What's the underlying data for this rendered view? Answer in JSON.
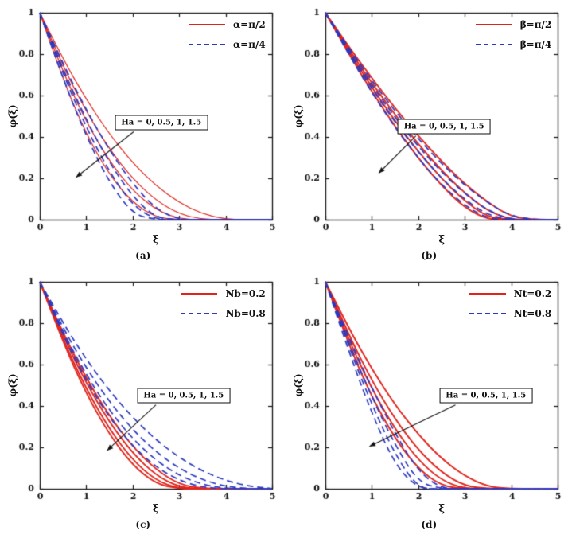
{
  "page": {
    "background": "#ffffff"
  },
  "chart_data": [
    {
      "id": "a",
      "type": "line",
      "title": "(a)",
      "xlabel": "ξ",
      "ylabel": "φ(ξ)",
      "xlim": [
        0,
        5
      ],
      "ylim": [
        0,
        1
      ],
      "grid": false,
      "legend_position": "top-right",
      "xticks": [
        "0",
        "1",
        "2",
        "3",
        "4",
        "5"
      ],
      "yticks": [
        "0",
        "0.2",
        "0.4",
        "0.6",
        "0.8",
        "1"
      ],
      "legend": [
        {
          "label": "α=π/2",
          "color": "#e0241c",
          "dash": "solid",
          "width": 1.2
        },
        {
          "label": "α=π/4",
          "color": "#2b38c0",
          "dash": "dashed",
          "width": 1.7
        }
      ],
      "annotation": {
        "text": "Ha = 0, 0.5, 1, 1.5",
        "x": 2.62,
        "y": 0.47,
        "arrow": {
          "x1": 2.02,
          "y1": 0.425,
          "x2": 0.78,
          "y2": 0.205
        }
      },
      "x": [
        0,
        0.5,
        1,
        1.5,
        2,
        2.5,
        3,
        3.5,
        4,
        4.5,
        5
      ],
      "series": [
        {
          "group": "α=π/2",
          "Ha": 0,
          "legend": 0,
          "values": [
            1,
            0.776,
            0.581,
            0.413,
            0.274,
            0.164,
            0.082,
            0.028,
            0.002,
            0,
            0
          ]
        },
        {
          "group": "α=π/2",
          "Ha": 0.5,
          "legend": 0,
          "values": [
            1,
            0.741,
            0.522,
            0.34,
            0.198,
            0.093,
            0.028,
            0.001,
            0,
            0,
            0
          ]
        },
        {
          "group": "α=π/2",
          "Ha": 1,
          "legend": 0,
          "values": [
            1,
            0.712,
            0.473,
            0.282,
            0.141,
            0.048,
            0.004,
            0,
            0,
            0,
            0
          ]
        },
        {
          "group": "α=π/2",
          "Ha": 1.5,
          "legend": 0,
          "values": [
            1,
            0.675,
            0.413,
            0.216,
            0.082,
            0.011,
            0,
            0,
            0,
            0,
            0
          ]
        },
        {
          "group": "α=π/4",
          "Ha": 0,
          "legend": 1,
          "values": [
            1,
            0.753,
            0.53,
            0.336,
            0.173,
            0.051,
            0,
            0,
            0,
            0,
            0
          ]
        },
        {
          "group": "α=π/4",
          "Ha": 0.5,
          "legend": 1,
          "values": [
            1,
            0.726,
            0.482,
            0.275,
            0.111,
            0.008,
            0,
            0,
            0,
            0,
            0
          ]
        },
        {
          "group": "α=π/4",
          "Ha": 1,
          "legend": 1,
          "values": [
            1,
            0.705,
            0.445,
            0.23,
            0.068,
            0,
            0,
            0,
            0,
            0,
            0
          ]
        },
        {
          "group": "α=π/4",
          "Ha": 1.5,
          "legend": 1,
          "values": [
            1,
            0.679,
            0.403,
            0.179,
            0.027,
            0,
            0,
            0,
            0,
            0,
            0
          ]
        }
      ]
    },
    {
      "id": "b",
      "type": "line",
      "title": "(b)",
      "xlabel": "ξ",
      "ylabel": "φ(ξ)",
      "xlim": [
        0,
        5
      ],
      "ylim": [
        0,
        1
      ],
      "grid": false,
      "legend_position": "top-right",
      "xticks": [
        "0",
        "1",
        "2",
        "3",
        "4",
        "5"
      ],
      "yticks": [
        "0",
        "0.2",
        "0.4",
        "0.6",
        "0.8",
        "1"
      ],
      "legend": [
        {
          "label": "β=π/2",
          "color": "#e0241c",
          "dash": "solid",
          "width": 1.9
        },
        {
          "label": "β=π/4",
          "color": "#2b38c0",
          "dash": "dashed",
          "width": 1.7
        }
      ],
      "annotation": {
        "text": "Ha = 0, 0.5, 1, 1.5",
        "x": 2.55,
        "y": 0.45,
        "arrow": {
          "x1": 1.95,
          "y1": 0.405,
          "x2": 1.15,
          "y2": 0.225
        }
      },
      "x": [
        0,
        0.5,
        1,
        1.5,
        2,
        2.5,
        3,
        3.5,
        4,
        4.5,
        5
      ],
      "series": [
        {
          "group": "β=π/2",
          "Ha": 0,
          "legend": 0,
          "values": [
            1,
            0.837,
            0.684,
            0.539,
            0.405,
            0.282,
            0.173,
            0.082,
            0.014,
            0,
            0
          ]
        },
        {
          "group": "β=π/2",
          "Ha": 0.5,
          "legend": 0,
          "values": [
            1,
            0.825,
            0.66,
            0.507,
            0.365,
            0.238,
            0.128,
            0.041,
            0,
            0,
            0
          ]
        },
        {
          "group": "β=π/2",
          "Ha": 1,
          "legend": 0,
          "values": [
            1,
            0.814,
            0.639,
            0.477,
            0.329,
            0.198,
            0.089,
            0.011,
            0,
            0,
            0
          ]
        },
        {
          "group": "β=π/2",
          "Ha": 1.5,
          "legend": 0,
          "values": [
            1,
            0.803,
            0.619,
            0.45,
            0.297,
            0.164,
            0.057,
            0,
            0,
            0,
            0
          ]
        },
        {
          "group": "β=π/4",
          "Ha": 0,
          "legend": 1,
          "values": [
            1,
            0.831,
            0.672,
            0.525,
            0.391,
            0.271,
            0.166,
            0.08,
            0.018,
            0,
            0
          ]
        },
        {
          "group": "β=π/4",
          "Ha": 0.5,
          "legend": 1,
          "values": [
            1,
            0.818,
            0.65,
            0.494,
            0.354,
            0.23,
            0.125,
            0.044,
            0,
            0,
            0
          ]
        },
        {
          "group": "β=π/4",
          "Ha": 1,
          "legend": 1,
          "values": [
            1,
            0.809,
            0.633,
            0.471,
            0.326,
            0.2,
            0.097,
            0.022,
            0,
            0,
            0
          ]
        },
        {
          "group": "β=π/4",
          "Ha": 1.5,
          "legend": 1,
          "values": [
            1,
            0.799,
            0.614,
            0.445,
            0.296,
            0.169,
            0.068,
            0.005,
            0,
            0,
            0
          ]
        }
      ]
    },
    {
      "id": "c",
      "type": "line",
      "title": "(c)",
      "xlabel": "ξ",
      "ylabel": "φ(ξ)",
      "xlim": [
        0,
        5
      ],
      "ylim": [
        0,
        1
      ],
      "grid": false,
      "legend_position": "top-right",
      "xticks": [
        "0",
        "1",
        "2",
        "3",
        "4",
        "5"
      ],
      "yticks": [
        "0",
        "0.2",
        "0.4",
        "0.6",
        "0.8",
        "1"
      ],
      "legend": [
        {
          "label": "Nb=0.2",
          "color": "#e0241c",
          "dash": "solid",
          "width": 1.9
        },
        {
          "label": "Nb=0.8",
          "color": "#2b38c0",
          "dash": "dashed",
          "width": 1.7
        }
      ],
      "annotation": {
        "text": "Ha = 0, 0.5, 1, 1.5",
        "x": 3.1,
        "y": 0.45,
        "arrow": {
          "x1": 2.5,
          "y1": 0.405,
          "x2": 1.45,
          "y2": 0.185
        }
      },
      "x": [
        0,
        0.5,
        1,
        1.5,
        2,
        2.5,
        3,
        3.5,
        4,
        4.5,
        5
      ],
      "series": [
        {
          "group": "Nb=0.2",
          "Ha": 0,
          "legend": 0,
          "values": [
            1,
            0.751,
            0.534,
            0.351,
            0.203,
            0.092,
            0.021,
            0,
            0,
            0,
            0
          ]
        },
        {
          "group": "Nb=0.2",
          "Ha": 0.5,
          "legend": 0,
          "values": [
            1,
            0.737,
            0.51,
            0.32,
            0.171,
            0.065,
            0.007,
            0,
            0,
            0,
            0
          ]
        },
        {
          "group": "Nb=0.2",
          "Ha": 1,
          "legend": 0,
          "values": [
            1,
            0.72,
            0.482,
            0.287,
            0.138,
            0.04,
            0,
            0,
            0,
            0,
            0
          ]
        },
        {
          "group": "Nb=0.2",
          "Ha": 1.5,
          "legend": 0,
          "values": [
            1,
            0.707,
            0.459,
            0.261,
            0.113,
            0.023,
            0,
            0,
            0,
            0,
            0
          ]
        },
        {
          "group": "Nb=0.8",
          "Ha": 0,
          "legend": 1,
          "values": [
            1,
            0.8,
            0.625,
            0.473,
            0.344,
            0.236,
            0.151,
            0.085,
            0.04,
            0.012,
            0.001
          ]
        },
        {
          "group": "Nb=0.8",
          "Ha": 0.5,
          "legend": 1,
          "values": [
            1,
            0.776,
            0.583,
            0.42,
            0.285,
            0.178,
            0.098,
            0.043,
            0.011,
            0,
            0
          ]
        },
        {
          "group": "Nb=0.8",
          "Ha": 1,
          "legend": 1,
          "values": [
            1,
            0.757,
            0.55,
            0.378,
            0.241,
            0.137,
            0.064,
            0.02,
            0.001,
            0,
            0
          ]
        },
        {
          "group": "Nb=0.8",
          "Ha": 1.5,
          "legend": 1,
          "values": [
            1,
            0.74,
            0.521,
            0.343,
            0.206,
            0.105,
            0.04,
            0.007,
            0,
            0,
            0
          ]
        }
      ]
    },
    {
      "id": "d",
      "type": "line",
      "title": "(d)",
      "xlabel": "ξ",
      "ylabel": "φ(ξ)",
      "xlim": [
        0,
        5
      ],
      "ylim": [
        0,
        1
      ],
      "grid": false,
      "legend_position": "top-right",
      "xticks": [
        "0",
        "1",
        "2",
        "3",
        "4",
        "5"
      ],
      "yticks": [
        "0",
        "0.2",
        "0.4",
        "0.6",
        "0.8",
        "1"
      ],
      "legend": [
        {
          "label": "Nt=0.2",
          "color": "#e0241c",
          "dash": "solid",
          "width": 1.9
        },
        {
          "label": "Nt=0.8",
          "color": "#2b38c0",
          "dash": "dashed",
          "width": 1.7
        }
      ],
      "annotation": {
        "text": "Ha = 0, 0.5, 1, 1.5",
        "x": 3.45,
        "y": 0.45,
        "arrow": {
          "x1": 2.8,
          "y1": 0.405,
          "x2": 0.95,
          "y2": 0.205
        }
      },
      "x": [
        0,
        0.5,
        1,
        1.5,
        2,
        2.5,
        3,
        3.5,
        4,
        4.5,
        5
      ],
      "series": [
        {
          "group": "Nt=0.2",
          "Ha": 0,
          "legend": 0,
          "values": [
            1,
            0.776,
            0.578,
            0.405,
            0.261,
            0.145,
            0.061,
            0.01,
            0,
            0,
            0
          ]
        },
        {
          "group": "Nt=0.2",
          "Ha": 0.5,
          "legend": 0,
          "values": [
            1,
            0.744,
            0.522,
            0.335,
            0.187,
            0.078,
            0.013,
            0,
            0,
            0,
            0
          ]
        },
        {
          "group": "Nt=0.2",
          "Ha": 1,
          "legend": 0,
          "values": [
            1,
            0.72,
            0.482,
            0.287,
            0.138,
            0.04,
            0,
            0,
            0,
            0,
            0
          ]
        },
        {
          "group": "Nt=0.2",
          "Ha": 1.5,
          "legend": 0,
          "values": [
            1,
            0.697,
            0.443,
            0.242,
            0.096,
            0.013,
            0,
            0,
            0,
            0,
            0
          ]
        },
        {
          "group": "Nt=0.8",
          "Ha": 0,
          "legend": 1,
          "values": [
            1,
            0.733,
            0.486,
            0.267,
            0.084,
            0,
            0,
            0,
            0,
            0,
            0
          ]
        },
        {
          "group": "Nt=0.8",
          "Ha": 0.5,
          "legend": 1,
          "values": [
            1,
            0.708,
            0.443,
            0.211,
            0.031,
            0,
            0,
            0,
            0,
            0,
            0
          ]
        },
        {
          "group": "Nt=0.8",
          "Ha": 1,
          "legend": 1,
          "values": [
            1,
            0.688,
            0.406,
            0.165,
            0,
            0,
            0,
            0,
            0,
            0,
            0
          ]
        },
        {
          "group": "Nt=0.8",
          "Ha": 1.5,
          "legend": 1,
          "values": [
            1,
            0.664,
            0.364,
            0.115,
            0,
            0,
            0,
            0,
            0,
            0,
            0
          ]
        }
      ]
    }
  ]
}
